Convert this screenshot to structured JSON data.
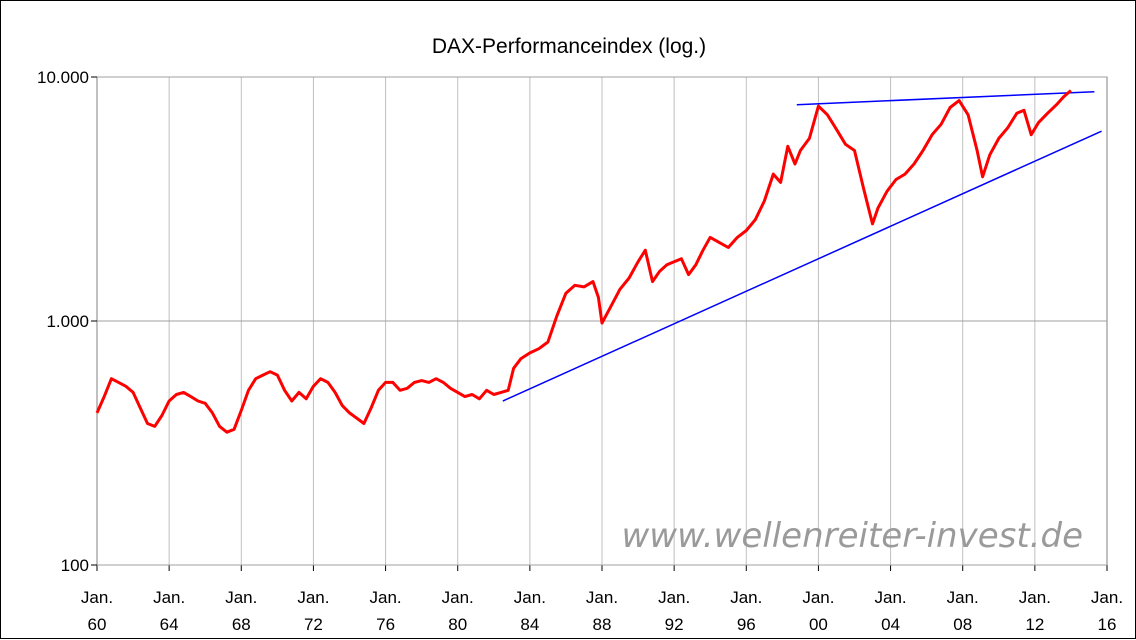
{
  "chart_data": {
    "type": "line",
    "title": "DAX-Performanceindex (log.)",
    "xlabel": "",
    "ylabel": "",
    "yscale": "log",
    "ylim": [
      100,
      10000
    ],
    "xlim": [
      1960,
      2016
    ],
    "grid": true,
    "y_ticks": [
      {
        "value": 100,
        "label": "100"
      },
      {
        "value": 1000,
        "label": "1.000"
      },
      {
        "value": 10000,
        "label": "10.000"
      }
    ],
    "x_ticks": [
      {
        "value": 1960,
        "top": "Jan.",
        "bottom": "60"
      },
      {
        "value": 1964,
        "top": "Jan.",
        "bottom": "64"
      },
      {
        "value": 1968,
        "top": "Jan.",
        "bottom": "68"
      },
      {
        "value": 1972,
        "top": "Jan.",
        "bottom": "72"
      },
      {
        "value": 1976,
        "top": "Jan.",
        "bottom": "76"
      },
      {
        "value": 1980,
        "top": "Jan.",
        "bottom": "80"
      },
      {
        "value": 1984,
        "top": "Jan.",
        "bottom": "84"
      },
      {
        "value": 1988,
        "top": "Jan.",
        "bottom": "88"
      },
      {
        "value": 1992,
        "top": "Jan.",
        "bottom": "92"
      },
      {
        "value": 1996,
        "top": "Jan.",
        "bottom": "96"
      },
      {
        "value": 2000,
        "top": "Jan.",
        "bottom": "00"
      },
      {
        "value": 2004,
        "top": "Jan.",
        "bottom": "04"
      },
      {
        "value": 2008,
        "top": "Jan.",
        "bottom": "08"
      },
      {
        "value": 2012,
        "top": "Jan.",
        "bottom": "12"
      },
      {
        "value": 2016,
        "top": "Jan.",
        "bottom": "16"
      }
    ],
    "series": [
      {
        "color": "#ff0000",
        "points": [
          [
            1960.0,
            420
          ],
          [
            1960.4,
            490
          ],
          [
            1960.8,
            580
          ],
          [
            1961.2,
            560
          ],
          [
            1961.6,
            540
          ],
          [
            1962.0,
            510
          ],
          [
            1962.4,
            440
          ],
          [
            1962.8,
            380
          ],
          [
            1963.2,
            370
          ],
          [
            1963.6,
            410
          ],
          [
            1964.0,
            470
          ],
          [
            1964.4,
            500
          ],
          [
            1964.8,
            510
          ],
          [
            1965.2,
            490
          ],
          [
            1965.6,
            470
          ],
          [
            1966.0,
            460
          ],
          [
            1966.4,
            420
          ],
          [
            1966.8,
            370
          ],
          [
            1967.2,
            350
          ],
          [
            1967.6,
            360
          ],
          [
            1968.0,
            430
          ],
          [
            1968.4,
            520
          ],
          [
            1968.8,
            580
          ],
          [
            1969.2,
            600
          ],
          [
            1969.6,
            620
          ],
          [
            1970.0,
            600
          ],
          [
            1970.4,
            520
          ],
          [
            1970.8,
            470
          ],
          [
            1971.2,
            510
          ],
          [
            1971.6,
            480
          ],
          [
            1972.0,
            540
          ],
          [
            1972.4,
            580
          ],
          [
            1972.8,
            560
          ],
          [
            1973.2,
            510
          ],
          [
            1973.6,
            450
          ],
          [
            1974.0,
            420
          ],
          [
            1974.4,
            400
          ],
          [
            1974.8,
            380
          ],
          [
            1975.2,
            440
          ],
          [
            1975.6,
            520
          ],
          [
            1976.0,
            560
          ],
          [
            1976.4,
            560
          ],
          [
            1976.8,
            520
          ],
          [
            1977.2,
            530
          ],
          [
            1977.6,
            560
          ],
          [
            1978.0,
            570
          ],
          [
            1978.4,
            560
          ],
          [
            1978.8,
            580
          ],
          [
            1979.2,
            560
          ],
          [
            1979.6,
            530
          ],
          [
            1980.0,
            510
          ],
          [
            1980.4,
            490
          ],
          [
            1980.8,
            500
          ],
          [
            1981.2,
            480
          ],
          [
            1981.6,
            520
          ],
          [
            1982.0,
            500
          ],
          [
            1982.4,
            510
          ],
          [
            1982.8,
            520
          ],
          [
            1983.1,
            640
          ],
          [
            1983.5,
            700
          ],
          [
            1984.0,
            740
          ],
          [
            1984.5,
            770
          ],
          [
            1985.0,
            820
          ],
          [
            1985.5,
            1050
          ],
          [
            1986.0,
            1300
          ],
          [
            1986.5,
            1400
          ],
          [
            1987.0,
            1380
          ],
          [
            1987.5,
            1450
          ],
          [
            1987.8,
            1250
          ],
          [
            1988.0,
            980
          ],
          [
            1988.5,
            1150
          ],
          [
            1989.0,
            1350
          ],
          [
            1989.5,
            1500
          ],
          [
            1990.0,
            1750
          ],
          [
            1990.4,
            1950
          ],
          [
            1990.8,
            1450
          ],
          [
            1991.2,
            1600
          ],
          [
            1991.6,
            1700
          ],
          [
            1992.0,
            1750
          ],
          [
            1992.4,
            1800
          ],
          [
            1992.8,
            1550
          ],
          [
            1993.2,
            1700
          ],
          [
            1993.6,
            1950
          ],
          [
            1994.0,
            2200
          ],
          [
            1994.5,
            2100
          ],
          [
            1995.0,
            2000
          ],
          [
            1995.5,
            2200
          ],
          [
            1996.0,
            2350
          ],
          [
            1996.5,
            2600
          ],
          [
            1997.0,
            3100
          ],
          [
            1997.5,
            4000
          ],
          [
            1997.9,
            3700
          ],
          [
            1998.3,
            5200
          ],
          [
            1998.7,
            4400
          ],
          [
            1999.0,
            5000
          ],
          [
            1999.5,
            5600
          ],
          [
            2000.0,
            7600
          ],
          [
            2000.5,
            7000
          ],
          [
            2001.0,
            6100
          ],
          [
            2001.5,
            5300
          ],
          [
            2002.0,
            5000
          ],
          [
            2002.5,
            3500
          ],
          [
            2003.0,
            2500
          ],
          [
            2003.3,
            2900
          ],
          [
            2003.8,
            3400
          ],
          [
            2004.3,
            3800
          ],
          [
            2004.8,
            4000
          ],
          [
            2005.3,
            4400
          ],
          [
            2005.8,
            5000
          ],
          [
            2006.3,
            5800
          ],
          [
            2006.8,
            6400
          ],
          [
            2007.3,
            7500
          ],
          [
            2007.8,
            8000
          ],
          [
            2008.3,
            7000
          ],
          [
            2008.8,
            5000
          ],
          [
            2009.1,
            3900
          ],
          [
            2009.5,
            4800
          ],
          [
            2010.0,
            5600
          ],
          [
            2010.5,
            6200
          ],
          [
            2011.0,
            7100
          ],
          [
            2011.4,
            7300
          ],
          [
            2011.8,
            5800
          ],
          [
            2012.2,
            6500
          ],
          [
            2012.7,
            7100
          ],
          [
            2013.2,
            7700
          ],
          [
            2013.6,
            8300
          ],
          [
            2014.0,
            8800
          ]
        ]
      }
    ],
    "trendlines": [
      {
        "color": "#0000ff",
        "from": [
          1982.5,
          470
        ],
        "to": [
          2015.7,
          6000
        ]
      },
      {
        "color": "#0000ff",
        "from": [
          1998.8,
          7700
        ],
        "to": [
          2015.3,
          8700
        ]
      }
    ],
    "watermark": "www.wellenreiter-invest.de"
  }
}
